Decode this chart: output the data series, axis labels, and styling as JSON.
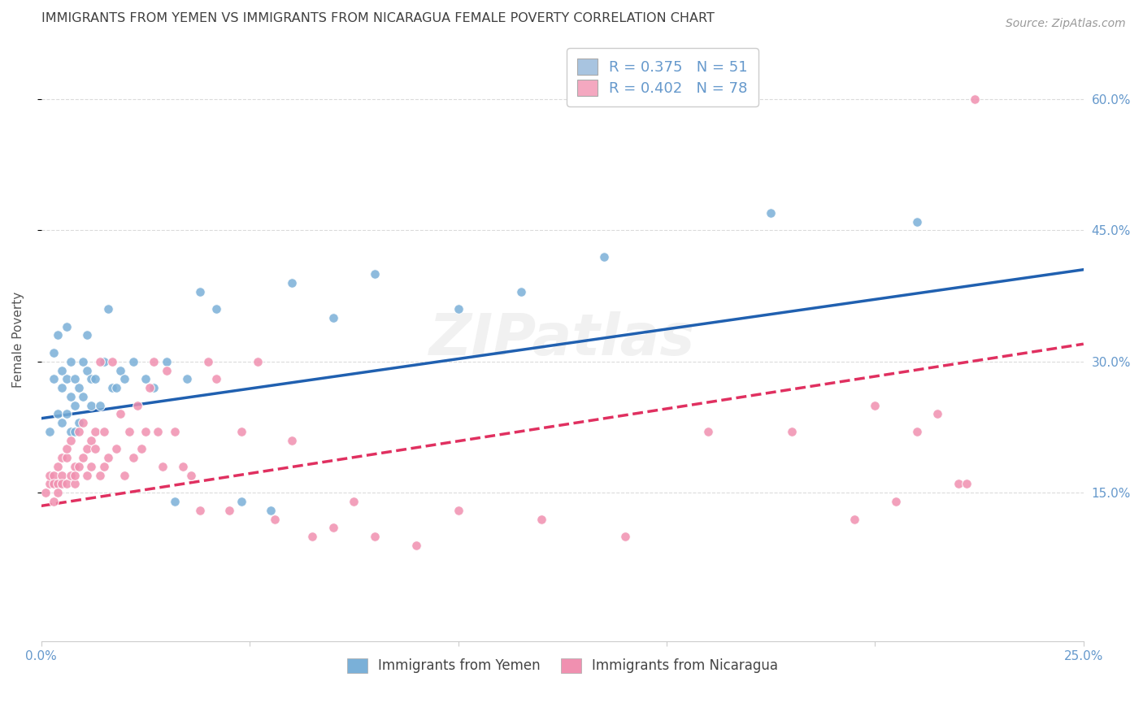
{
  "title": "IMMIGRANTS FROM YEMEN VS IMMIGRANTS FROM NICARAGUA FEMALE POVERTY CORRELATION CHART",
  "source": "Source: ZipAtlas.com",
  "ylabel": "Female Poverty",
  "ytick_labels": [
    "15.0%",
    "30.0%",
    "45.0%",
    "60.0%"
  ],
  "ytick_values": [
    0.15,
    0.3,
    0.45,
    0.6
  ],
  "xlim": [
    0.0,
    0.25
  ],
  "ylim": [
    -0.02,
    0.67
  ],
  "legend_entries": [
    {
      "label": "R = 0.375   N = 51",
      "color": "#a8c4e0"
    },
    {
      "label": "R = 0.402   N = 78",
      "color": "#f4a8c0"
    }
  ],
  "legend_labels_bottom": [
    "Immigrants from Yemen",
    "Immigrants from Nicaragua"
  ],
  "yemen_color": "#7ab0d8",
  "nicaragua_color": "#f090b0",
  "trend_yemen_color": "#2060b0",
  "trend_nicaragua_color": "#e03060",
  "background_color": "#ffffff",
  "grid_color": "#cccccc",
  "title_color": "#404040",
  "axis_color": "#6699cc",
  "watermark": "ZIPatlas",
  "yemen_x": [
    0.002,
    0.003,
    0.003,
    0.004,
    0.004,
    0.005,
    0.005,
    0.005,
    0.006,
    0.006,
    0.006,
    0.007,
    0.007,
    0.007,
    0.008,
    0.008,
    0.008,
    0.009,
    0.009,
    0.01,
    0.01,
    0.011,
    0.011,
    0.012,
    0.012,
    0.013,
    0.014,
    0.015,
    0.016,
    0.017,
    0.018,
    0.019,
    0.02,
    0.022,
    0.025,
    0.027,
    0.03,
    0.032,
    0.035,
    0.038,
    0.042,
    0.048,
    0.055,
    0.06,
    0.07,
    0.08,
    0.1,
    0.115,
    0.135,
    0.175,
    0.21
  ],
  "yemen_y": [
    0.22,
    0.31,
    0.28,
    0.24,
    0.33,
    0.29,
    0.23,
    0.27,
    0.24,
    0.28,
    0.34,
    0.26,
    0.3,
    0.22,
    0.28,
    0.25,
    0.22,
    0.27,
    0.23,
    0.3,
    0.26,
    0.29,
    0.33,
    0.28,
    0.25,
    0.28,
    0.25,
    0.3,
    0.36,
    0.27,
    0.27,
    0.29,
    0.28,
    0.3,
    0.28,
    0.27,
    0.3,
    0.14,
    0.28,
    0.38,
    0.36,
    0.14,
    0.13,
    0.39,
    0.35,
    0.4,
    0.36,
    0.38,
    0.42,
    0.47,
    0.46
  ],
  "nicaragua_x": [
    0.001,
    0.002,
    0.002,
    0.003,
    0.003,
    0.003,
    0.004,
    0.004,
    0.004,
    0.005,
    0.005,
    0.005,
    0.006,
    0.006,
    0.006,
    0.007,
    0.007,
    0.008,
    0.008,
    0.008,
    0.009,
    0.009,
    0.01,
    0.01,
    0.011,
    0.011,
    0.012,
    0.012,
    0.013,
    0.013,
    0.014,
    0.014,
    0.015,
    0.015,
    0.016,
    0.017,
    0.018,
    0.019,
    0.02,
    0.021,
    0.022,
    0.023,
    0.024,
    0.025,
    0.026,
    0.027,
    0.028,
    0.029,
    0.03,
    0.032,
    0.034,
    0.036,
    0.038,
    0.04,
    0.042,
    0.045,
    0.048,
    0.052,
    0.056,
    0.06,
    0.065,
    0.07,
    0.075,
    0.08,
    0.09,
    0.1,
    0.12,
    0.14,
    0.16,
    0.18,
    0.195,
    0.2,
    0.205,
    0.21,
    0.215,
    0.22,
    0.222,
    0.224
  ],
  "nicaragua_y": [
    0.15,
    0.16,
    0.17,
    0.14,
    0.17,
    0.16,
    0.16,
    0.18,
    0.15,
    0.17,
    0.19,
    0.16,
    0.16,
    0.19,
    0.2,
    0.17,
    0.21,
    0.16,
    0.18,
    0.17,
    0.22,
    0.18,
    0.19,
    0.23,
    0.2,
    0.17,
    0.21,
    0.18,
    0.2,
    0.22,
    0.3,
    0.17,
    0.18,
    0.22,
    0.19,
    0.3,
    0.2,
    0.24,
    0.17,
    0.22,
    0.19,
    0.25,
    0.2,
    0.22,
    0.27,
    0.3,
    0.22,
    0.18,
    0.29,
    0.22,
    0.18,
    0.17,
    0.13,
    0.3,
    0.28,
    0.13,
    0.22,
    0.3,
    0.12,
    0.21,
    0.1,
    0.11,
    0.14,
    0.1,
    0.09,
    0.13,
    0.12,
    0.1,
    0.22,
    0.22,
    0.12,
    0.25,
    0.14,
    0.22,
    0.24,
    0.16,
    0.16,
    0.6
  ]
}
